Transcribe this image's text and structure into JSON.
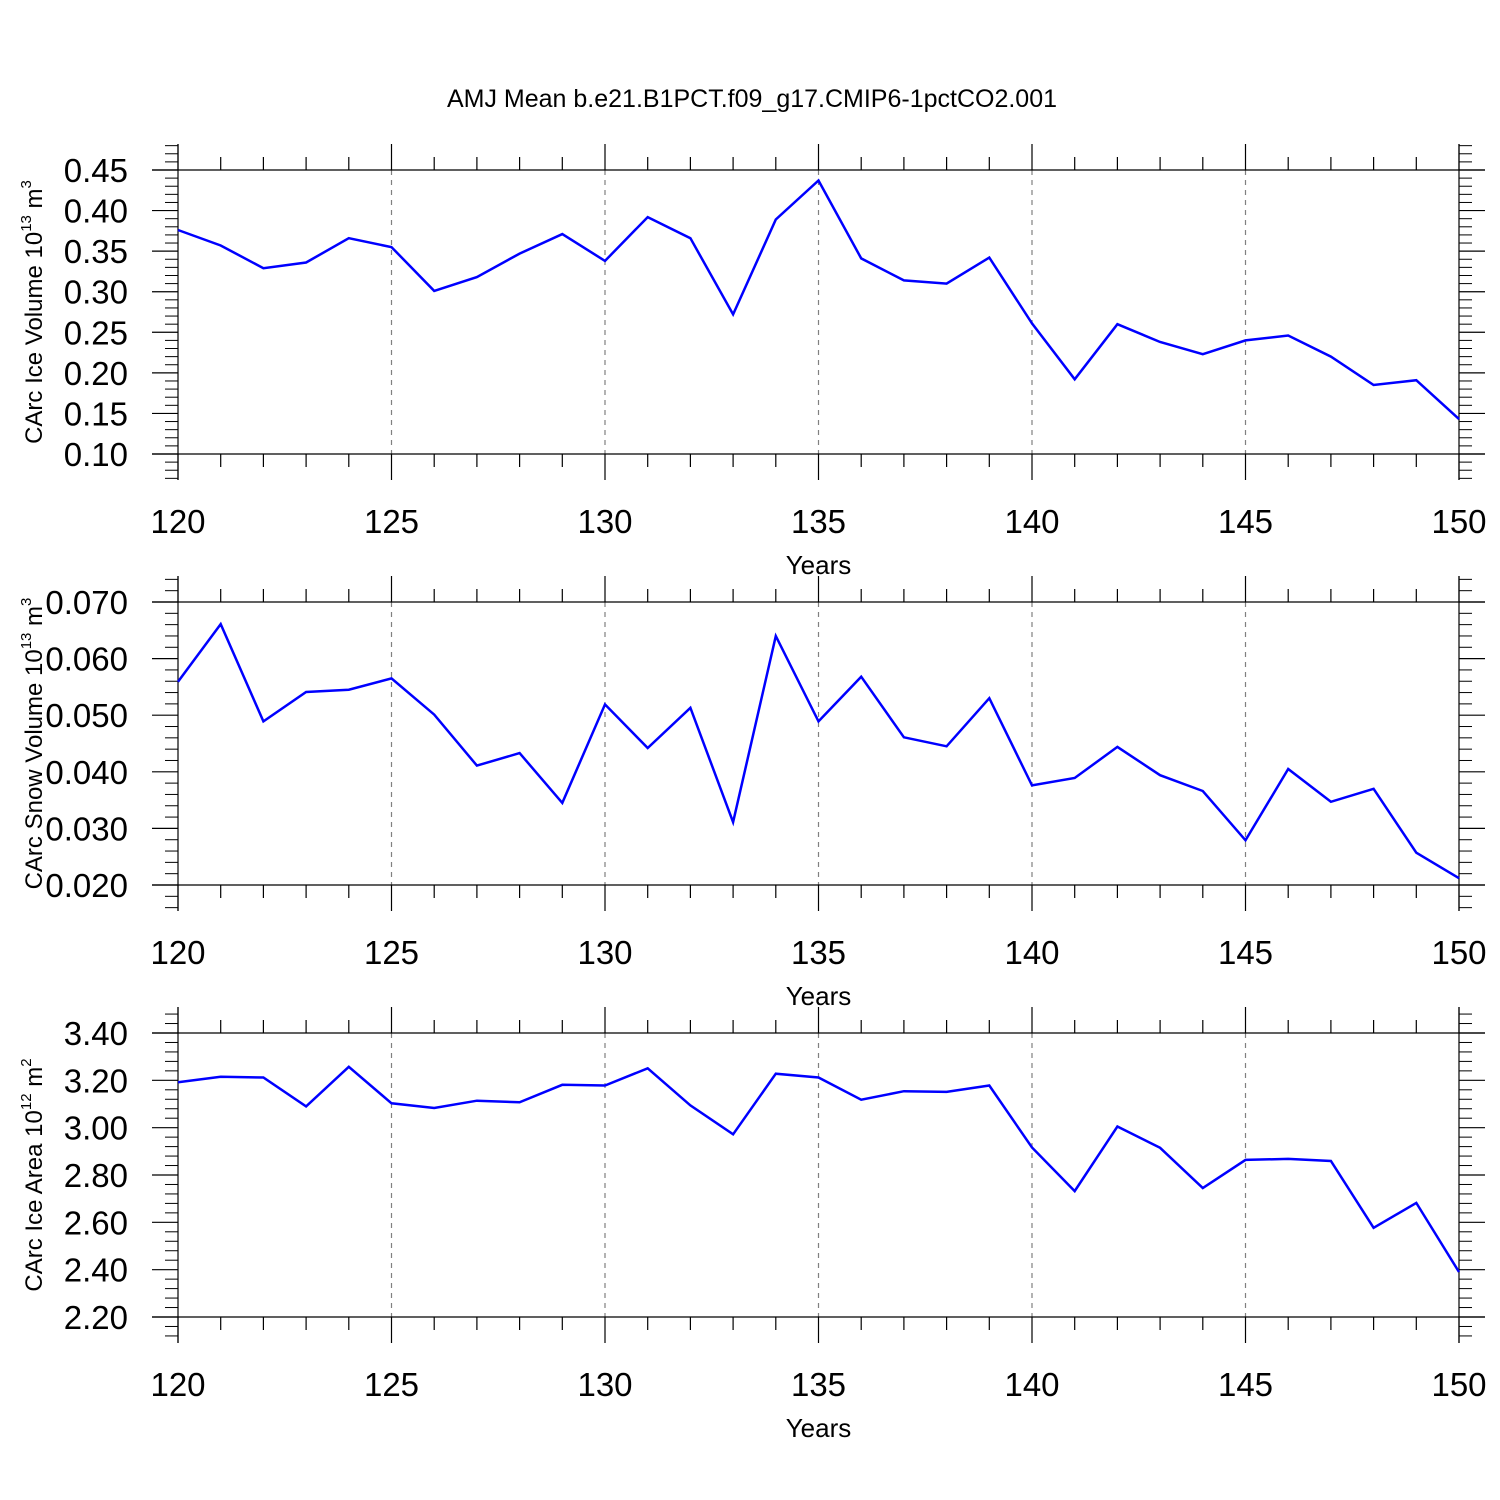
{
  "title": "AMJ Mean b.e21.B1PCT.f09_g17.CMIP6-1pctCO2.001",
  "colors": {
    "series": "#0000ff",
    "axes": "#000000",
    "grid": "#808080"
  },
  "chart_data": [
    {
      "type": "line",
      "ylabel": {
        "prefix": "CArc Ice Volume 10",
        "exp1": "13",
        "mid": " m",
        "exp2": "3"
      },
      "xlabel": "Years",
      "xlim": [
        120,
        150
      ],
      "ylim": [
        0.1,
        0.45
      ],
      "yticks": [
        "0.10",
        "0.15",
        "0.20",
        "0.25",
        "0.30",
        "0.35",
        "0.40",
        "0.45"
      ],
      "xticks": [
        "120",
        "125",
        "130",
        "135",
        "140",
        "145",
        "150"
      ],
      "grid": "vertical dashed at major x ticks",
      "x": [
        120,
        121,
        122,
        123,
        124,
        125,
        126,
        127,
        128,
        129,
        130,
        131,
        132,
        133,
        134,
        135,
        136,
        137,
        138,
        139,
        140,
        141,
        142,
        143,
        144,
        145,
        146,
        147,
        148,
        149,
        150
      ],
      "values": [
        0.376,
        0.357,
        0.329,
        0.336,
        0.366,
        0.355,
        0.301,
        0.318,
        0.347,
        0.371,
        0.338,
        0.392,
        0.366,
        0.272,
        0.389,
        0.437,
        0.341,
        0.314,
        0.31,
        0.342,
        0.261,
        0.192,
        0.26,
        0.238,
        0.223,
        0.24,
        0.246,
        0.22,
        0.185,
        0.191,
        0.143
      ]
    },
    {
      "type": "line",
      "ylabel": {
        "prefix": "CArc Snow Volume 10",
        "exp1": "13",
        "mid": " m",
        "exp2": "3"
      },
      "xlabel": "Years",
      "xlim": [
        120,
        150
      ],
      "ylim": [
        0.02,
        0.07
      ],
      "yticks": [
        "0.020",
        "0.030",
        "0.040",
        "0.050",
        "0.060",
        "0.070"
      ],
      "xticks": [
        "120",
        "125",
        "130",
        "135",
        "140",
        "145",
        "150"
      ],
      "grid": "vertical dashed at major x ticks",
      "x": [
        120,
        121,
        122,
        123,
        124,
        125,
        126,
        127,
        128,
        129,
        130,
        131,
        132,
        133,
        134,
        135,
        136,
        137,
        138,
        139,
        140,
        141,
        142,
        143,
        144,
        145,
        146,
        147,
        148,
        149,
        150
      ],
      "values": [
        0.0559,
        0.0661,
        0.0489,
        0.0541,
        0.0545,
        0.0565,
        0.0501,
        0.0411,
        0.0433,
        0.0345,
        0.0519,
        0.0442,
        0.0513,
        0.0311,
        0.064,
        0.0489,
        0.0568,
        0.0461,
        0.0445,
        0.053,
        0.0376,
        0.0389,
        0.0444,
        0.0394,
        0.0366,
        0.0279,
        0.0405,
        0.0347,
        0.037,
        0.0257,
        0.0212
      ]
    },
    {
      "type": "line",
      "ylabel": {
        "prefix": "CArc Ice Area 10",
        "exp1": "12",
        "mid": " m",
        "exp2": "2"
      },
      "xlabel": "Years",
      "xlim": [
        120,
        150
      ],
      "ylim": [
        2.2,
        3.4
      ],
      "yticks": [
        "2.20",
        "2.40",
        "2.60",
        "2.80",
        "3.00",
        "3.20",
        "3.40"
      ],
      "xticks": [
        "120",
        "125",
        "130",
        "135",
        "140",
        "145",
        "150"
      ],
      "grid": "vertical dashed at major x ticks",
      "x": [
        120,
        121,
        122,
        123,
        124,
        125,
        126,
        127,
        128,
        129,
        130,
        131,
        132,
        133,
        134,
        135,
        136,
        137,
        138,
        139,
        140,
        141,
        142,
        143,
        144,
        145,
        146,
        147,
        148,
        149,
        150
      ],
      "values": [
        3.192,
        3.215,
        3.212,
        3.09,
        3.257,
        3.103,
        3.083,
        3.114,
        3.107,
        3.181,
        3.178,
        3.251,
        3.094,
        2.972,
        3.228,
        3.212,
        3.118,
        3.154,
        3.151,
        3.178,
        2.916,
        2.732,
        3.005,
        2.915,
        2.745,
        2.864,
        2.868,
        2.859,
        2.577,
        2.682,
        2.39
      ]
    }
  ]
}
